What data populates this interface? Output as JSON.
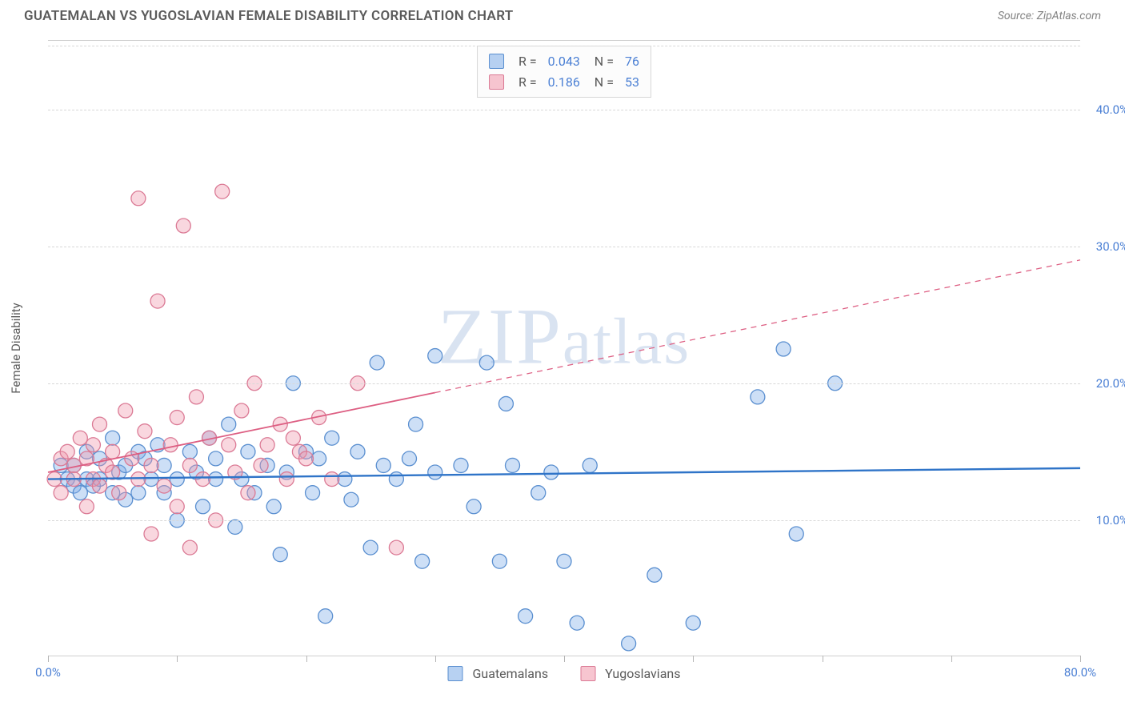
{
  "title": "GUATEMALAN VS YUGOSLAVIAN FEMALE DISABILITY CORRELATION CHART",
  "source": "Source: ZipAtlas.com",
  "watermark": "ZIPatlas",
  "chart": {
    "type": "scatter",
    "xlim": [
      0,
      80
    ],
    "ylim": [
      0,
      45
    ],
    "ylabel": "Female Disability",
    "background_color": "#ffffff",
    "grid_color": "#d8d8d8",
    "axis_line_color": "#cecece",
    "tick_label_color": "#4a7fd4",
    "label_fontsize": 15,
    "title_fontsize": 17,
    "y_ticks": [
      10,
      20,
      30,
      40
    ],
    "y_tick_labels": [
      "10.0%",
      "20.0%",
      "30.0%",
      "40.0%"
    ],
    "x_ticks": [
      0,
      10,
      20,
      30,
      40,
      50,
      60,
      70,
      80
    ],
    "x_tick_labels_start": "0.0%",
    "x_tick_labels_end": "80.0%",
    "marker_radius": 9,
    "marker_stroke_width": 1.3,
    "series": [
      {
        "name": "Guatemalans",
        "fill_color": "rgba(124,172,232,0.38)",
        "stroke_color": "#5a8fd0",
        "swatch_fill": "rgba(124,172,232,0.55)",
        "swatch_border": "#5a8fd0",
        "R": "0.043",
        "N": "76",
        "trend": {
          "y_at_x0": 13.0,
          "y_at_x80": 13.8,
          "color": "#2f74c8",
          "solid_until_x": 80,
          "width": 2.4
        },
        "points": [
          [
            1,
            14
          ],
          [
            1.5,
            13
          ],
          [
            2,
            12.5
          ],
          [
            2,
            14
          ],
          [
            2.5,
            12
          ],
          [
            3,
            13
          ],
          [
            3,
            15
          ],
          [
            3.5,
            12.5
          ],
          [
            4,
            14.5
          ],
          [
            4,
            13
          ],
          [
            5,
            12
          ],
          [
            5,
            16
          ],
          [
            5.5,
            13.5
          ],
          [
            6,
            14
          ],
          [
            6,
            11.5
          ],
          [
            7,
            15
          ],
          [
            7,
            12
          ],
          [
            7.5,
            14.5
          ],
          [
            8,
            13
          ],
          [
            8.5,
            15.5
          ],
          [
            9,
            12
          ],
          [
            9,
            14
          ],
          [
            10,
            13
          ],
          [
            10,
            10
          ],
          [
            11,
            15
          ],
          [
            11.5,
            13.5
          ],
          [
            12,
            11
          ],
          [
            12.5,
            16
          ],
          [
            13,
            14.5
          ],
          [
            13,
            13
          ],
          [
            14,
            17
          ],
          [
            14.5,
            9.5
          ],
          [
            15,
            13
          ],
          [
            15.5,
            15
          ],
          [
            16,
            12
          ],
          [
            17,
            14
          ],
          [
            17.5,
            11
          ],
          [
            18,
            7.5
          ],
          [
            18.5,
            13.5
          ],
          [
            19,
            20
          ],
          [
            20,
            15
          ],
          [
            20.5,
            12
          ],
          [
            21,
            14.5
          ],
          [
            21.5,
            3
          ],
          [
            22,
            16
          ],
          [
            23,
            13
          ],
          [
            23.5,
            11.5
          ],
          [
            24,
            15
          ],
          [
            25,
            8
          ],
          [
            25.5,
            21.5
          ],
          [
            26,
            14
          ],
          [
            27,
            13
          ],
          [
            28,
            14.5
          ],
          [
            28.5,
            17
          ],
          [
            29,
            7
          ],
          [
            30,
            13.5
          ],
          [
            30,
            22
          ],
          [
            32,
            14
          ],
          [
            33,
            11
          ],
          [
            34,
            21.5
          ],
          [
            35,
            7
          ],
          [
            35.5,
            18.5
          ],
          [
            36,
            14
          ],
          [
            37,
            3
          ],
          [
            38,
            12
          ],
          [
            39,
            13.5
          ],
          [
            40,
            7
          ],
          [
            41,
            2.5
          ],
          [
            42,
            14
          ],
          [
            45,
            1
          ],
          [
            47,
            6
          ],
          [
            50,
            2.5
          ],
          [
            55,
            19
          ],
          [
            57,
            22.5
          ],
          [
            58,
            9
          ],
          [
            61,
            20
          ]
        ]
      },
      {
        "name": "Yugoslavians",
        "fill_color": "rgba(240,150,170,0.38)",
        "stroke_color": "#db7a95",
        "swatch_fill": "rgba(240,150,170,0.55)",
        "swatch_border": "#db7a95",
        "R": "0.186",
        "N": "53",
        "trend": {
          "y_at_x0": 13.5,
          "y_at_x80": 29,
          "color": "#dd5e82",
          "solid_until_x": 30,
          "width": 1.8
        },
        "points": [
          [
            0.5,
            13
          ],
          [
            1,
            14.5
          ],
          [
            1,
            12
          ],
          [
            1.5,
            15
          ],
          [
            2,
            14
          ],
          [
            2,
            13
          ],
          [
            2.5,
            16
          ],
          [
            3,
            14.5
          ],
          [
            3,
            11
          ],
          [
            3.5,
            13
          ],
          [
            3.5,
            15.5
          ],
          [
            4,
            12.5
          ],
          [
            4,
            17
          ],
          [
            4.5,
            14
          ],
          [
            5,
            13.5
          ],
          [
            5,
            15
          ],
          [
            5.5,
            12
          ],
          [
            6,
            18
          ],
          [
            6.5,
            14.5
          ],
          [
            7,
            33.5
          ],
          [
            7,
            13
          ],
          [
            7.5,
            16.5
          ],
          [
            8,
            9
          ],
          [
            8,
            14
          ],
          [
            8.5,
            26
          ],
          [
            9,
            12.5
          ],
          [
            9.5,
            15.5
          ],
          [
            10,
            11
          ],
          [
            10,
            17.5
          ],
          [
            10.5,
            31.5
          ],
          [
            11,
            14
          ],
          [
            11,
            8
          ],
          [
            11.5,
            19
          ],
          [
            12,
            13
          ],
          [
            12.5,
            16
          ],
          [
            13,
            10
          ],
          [
            13.5,
            34
          ],
          [
            14,
            15.5
          ],
          [
            14.5,
            13.5
          ],
          [
            15,
            18
          ],
          [
            15.5,
            12
          ],
          [
            16,
            20
          ],
          [
            16.5,
            14
          ],
          [
            17,
            15.5
          ],
          [
            18,
            17
          ],
          [
            18.5,
            13
          ],
          [
            19,
            16
          ],
          [
            19.5,
            15
          ],
          [
            20,
            14.5
          ],
          [
            21,
            17.5
          ],
          [
            22,
            13
          ],
          [
            24,
            20
          ],
          [
            27,
            8
          ]
        ]
      }
    ],
    "top_legend": {
      "rows": [
        {
          "swatch_series": 0,
          "R_label": "R =",
          "R_val": "0.043",
          "N_label": "N =",
          "N_val": "76"
        },
        {
          "swatch_series": 1,
          "R_label": "R =",
          "R_val": "0.186",
          "N_label": "N =",
          "N_val": "53"
        }
      ]
    },
    "bottom_legend": {
      "items": [
        {
          "swatch_series": 0,
          "label": "Guatemalans"
        },
        {
          "swatch_series": 1,
          "label": "Yugoslavians"
        }
      ]
    }
  }
}
